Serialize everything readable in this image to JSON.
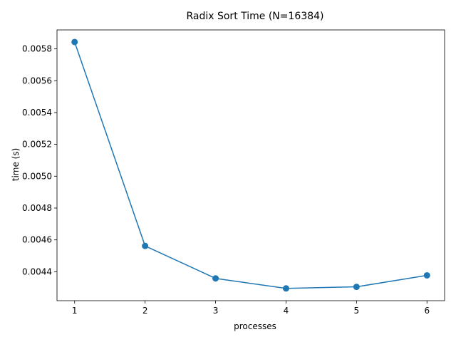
{
  "chart_data": {
    "type": "line",
    "title": "Radix Sort Time (N=16384)",
    "xlabel": "processes",
    "ylabel": "time (s)",
    "x": [
      1,
      2,
      3,
      4,
      5,
      6
    ],
    "series": [
      {
        "values": [
          0.005843,
          0.004562,
          0.004358,
          0.004295,
          0.004305,
          0.004377
        ],
        "color": "#1f77b4",
        "marker": "circle"
      }
    ],
    "xticks": [
      1,
      2,
      3,
      4,
      5,
      6
    ],
    "xtick_labels": [
      "1",
      "2",
      "3",
      "4",
      "5",
      "6"
    ],
    "yticks": [
      0.0044,
      0.0046,
      0.0048,
      0.005,
      0.0052,
      0.0054,
      0.0056,
      0.0058
    ],
    "ytick_labels": [
      "0.0044",
      "0.0046",
      "0.0048",
      "0.0050",
      "0.0052",
      "0.0054",
      "0.0056",
      "0.0058"
    ],
    "xlim": [
      0.75,
      6.25
    ],
    "ylim": [
      0.004218,
      0.005919
    ],
    "grid": false,
    "legend": "none"
  }
}
